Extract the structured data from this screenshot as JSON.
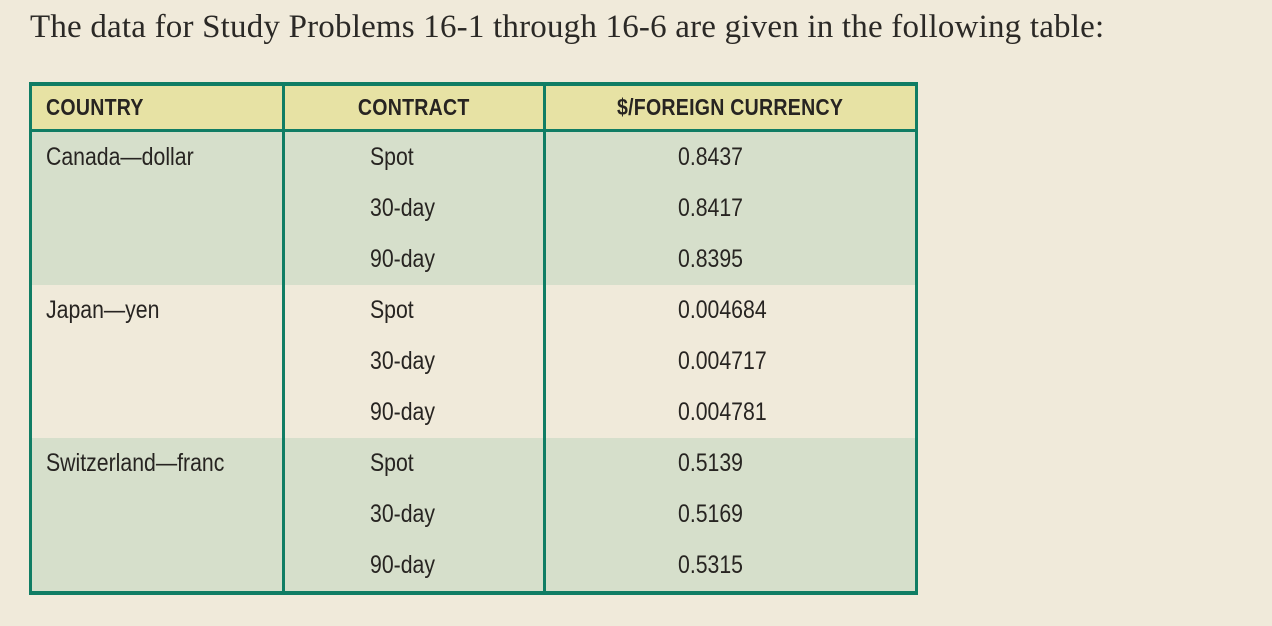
{
  "title": "The data for Study Problems 16-1 through 16-6 are given in the following table:",
  "colors": {
    "page_background": "#F0EADA",
    "table_border": "#107D64",
    "header_background": "#E7E2A4",
    "shaded_group_background": "#D6DFCB",
    "text": "#272421"
  },
  "table": {
    "columns": [
      "COUNTRY",
      "CONTRACT",
      "$/FOREIGN CURRENCY"
    ],
    "groups": [
      {
        "country": "Canada—dollar",
        "rows": [
          {
            "contract": "Spot",
            "rate": "0.8437"
          },
          {
            "contract": "30-day",
            "rate": "0.8417"
          },
          {
            "contract": "90-day",
            "rate": "0.8395"
          }
        ]
      },
      {
        "country": "Japan—yen",
        "rows": [
          {
            "contract": "Spot",
            "rate": "0.004684"
          },
          {
            "contract": "30-day",
            "rate": "0.004717"
          },
          {
            "contract": "90-day",
            "rate": "0.004781"
          }
        ]
      },
      {
        "country": "Switzerland—franc",
        "rows": [
          {
            "contract": "Spot",
            "rate": "0.5139"
          },
          {
            "contract": "30-day",
            "rate": "0.5169"
          },
          {
            "contract": "90-day",
            "rate": "0.5315"
          }
        ]
      }
    ]
  }
}
